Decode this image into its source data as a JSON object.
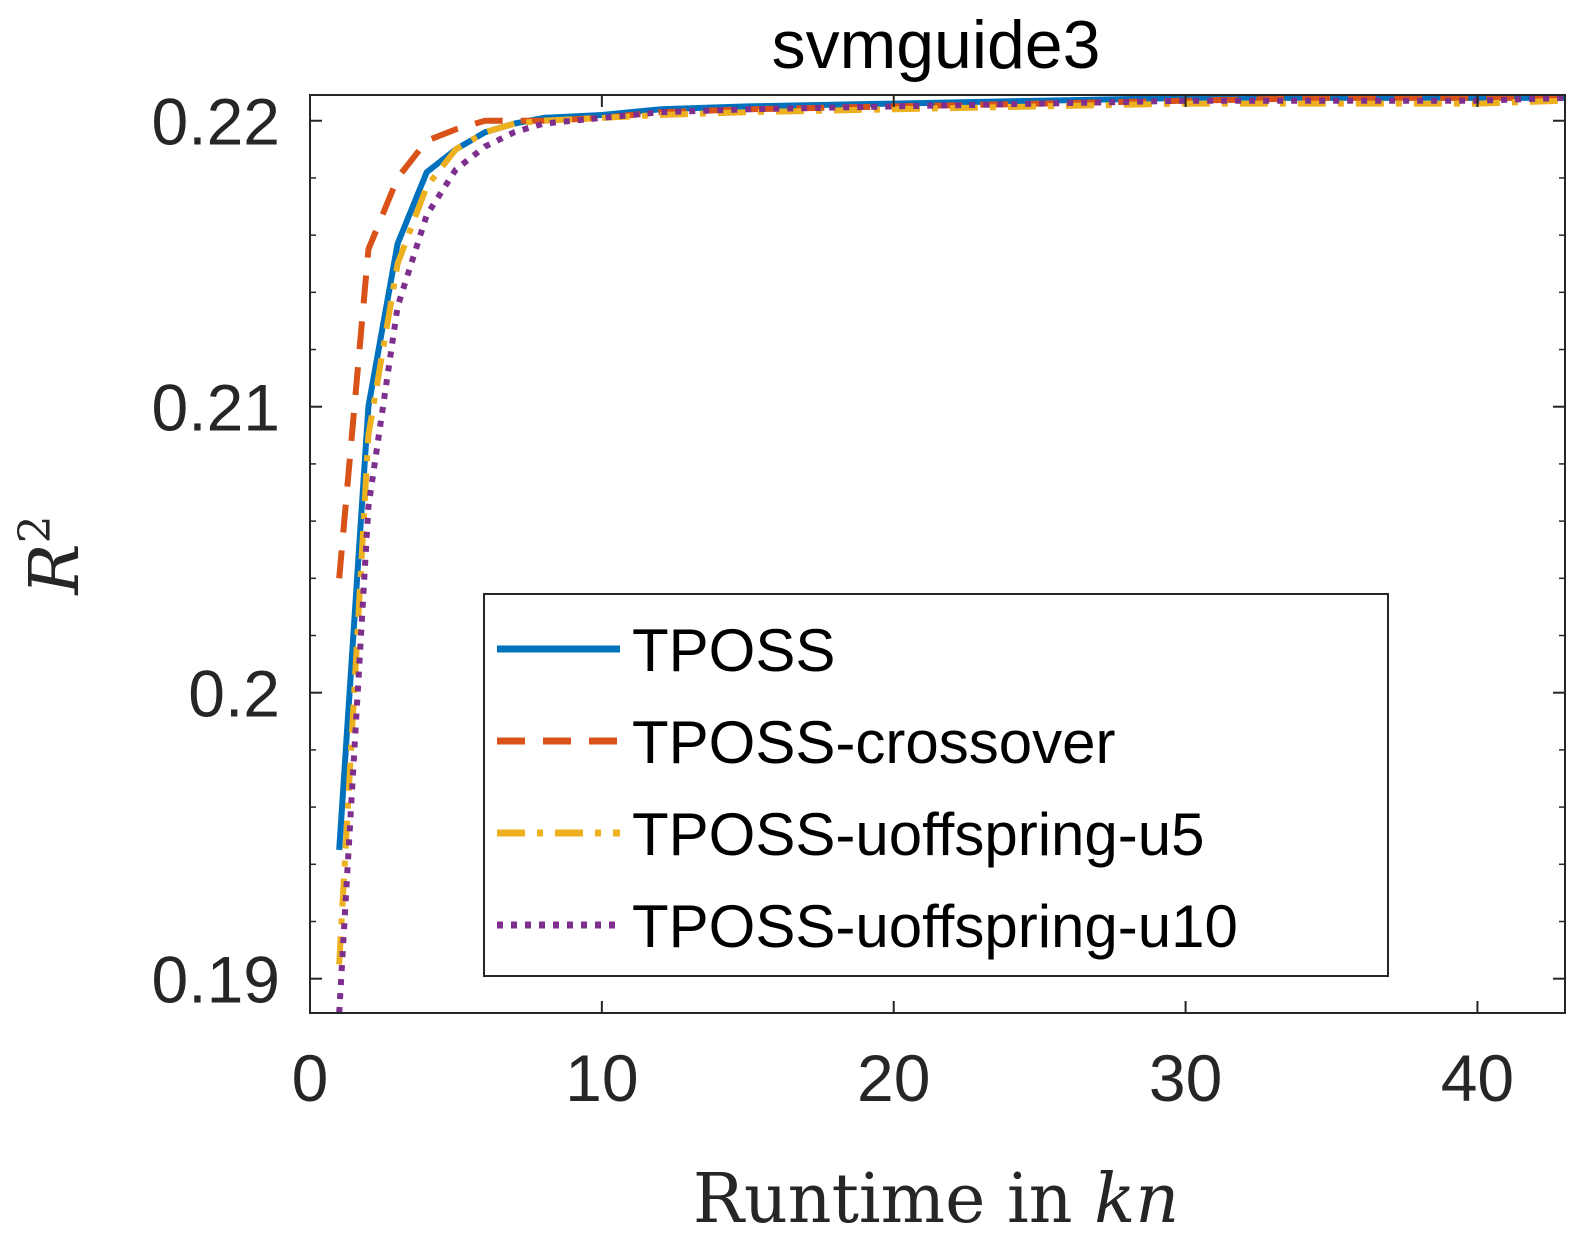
{
  "chart_data": {
    "type": "line",
    "title": "svmguide3",
    "xlabel": "Runtime in kn",
    "xlabel_parts": {
      "prefix": "Runtime in ",
      "math": "kn"
    },
    "ylabel": "R2",
    "ylabel_parts": {
      "base": "R",
      "superscript": "2"
    },
    "xlim": [
      0,
      43
    ],
    "ylim": [
      0.1888,
      0.2209
    ],
    "xticks": [
      0,
      10,
      20,
      30,
      40
    ],
    "xtick_labels": [
      "0",
      "10",
      "20",
      "30",
      "40"
    ],
    "yticks": [
      0.19,
      0.2,
      0.21,
      0.22
    ],
    "ytick_labels": [
      "0.19",
      "0.2",
      "0.21",
      "0.22"
    ],
    "grid": false,
    "legend_position": "bottom-right",
    "series": [
      {
        "name": "TPOSS",
        "color": "#0072BD",
        "dash": "solid",
        "x": [
          1,
          2,
          3,
          4,
          5,
          6,
          7,
          8,
          10,
          12,
          15,
          20,
          25,
          30,
          35,
          40,
          43
        ],
        "y": [
          0.1945,
          0.21,
          0.2157,
          0.2182,
          0.219,
          0.2196,
          0.2199,
          0.2201,
          0.2202,
          0.2204,
          0.2205,
          0.2206,
          0.2207,
          0.2208,
          0.2208,
          0.2208,
          0.2208
        ]
      },
      {
        "name": "TPOSS-crossover",
        "color": "#D95319",
        "dash": "dashed",
        "x": [
          1,
          2,
          3,
          4,
          5,
          6,
          7,
          8,
          10,
          12,
          15,
          20,
          25,
          30,
          35,
          40,
          43
        ],
        "y": [
          0.204,
          0.2155,
          0.218,
          0.2193,
          0.2197,
          0.22,
          0.22,
          0.22,
          0.2201,
          0.2203,
          0.2204,
          0.2205,
          0.2206,
          0.2207,
          0.2208,
          0.2208,
          0.2208
        ]
      },
      {
        "name": "TPOSS-uoffspring-u5",
        "color": "#EDB120",
        "dash": "dashdot",
        "x": [
          1,
          2,
          3,
          4,
          5,
          6,
          7,
          8,
          10,
          12,
          15,
          20,
          25,
          30,
          35,
          40,
          43
        ],
        "y": [
          0.1905,
          0.209,
          0.215,
          0.2177,
          0.219,
          0.2196,
          0.2199,
          0.22,
          0.2201,
          0.2202,
          0.2203,
          0.2204,
          0.2205,
          0.2206,
          0.2206,
          0.2206,
          0.2207
        ]
      },
      {
        "name": "TPOSS-uoffspring-u10",
        "color": "#7E2F8E",
        "dash": "dotted",
        "x": [
          1,
          2,
          3,
          4,
          5,
          6,
          7,
          8,
          10,
          12,
          15,
          20,
          25,
          30,
          35,
          40,
          43
        ],
        "y": [
          0.1888,
          0.2065,
          0.2135,
          0.2167,
          0.2183,
          0.2191,
          0.2196,
          0.2199,
          0.2201,
          0.2203,
          0.2204,
          0.2205,
          0.2206,
          0.2207,
          0.2207,
          0.2207,
          0.2208
        ]
      }
    ]
  }
}
